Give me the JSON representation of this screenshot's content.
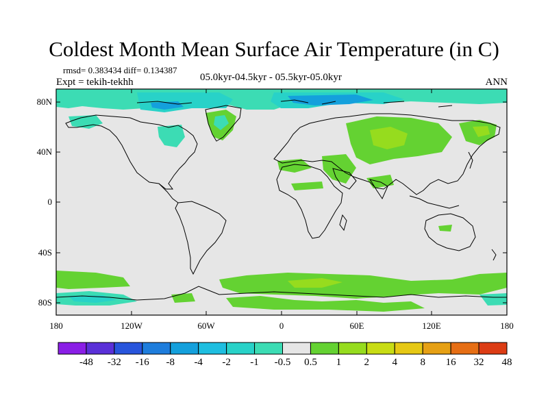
{
  "title": "Coldest Month Mean Surface Air Temperature (in C)",
  "stats": {
    "text": "rmsd= 0.383434  diff= 0.134387"
  },
  "experiment": "Expt = tekih-tekhh",
  "period": "05.0kyr-04.5kyr - 05.5kyr-05.0kyr",
  "season": "ANN",
  "map": {
    "projection": "cylindrical-equidistant",
    "lat_range": [
      -90,
      90
    ],
    "lon_range": [
      -180,
      180
    ],
    "lat_ticks": [
      "80N",
      "40N",
      "0",
      "40S",
      "80S"
    ],
    "lon_ticks": [
      "180",
      "120W",
      "60W",
      "0",
      "60E",
      "120E",
      "180"
    ]
  },
  "colorbar": {
    "labels": [
      "-48",
      "-32",
      "-16",
      "-8",
      "-4",
      "-2",
      "-1",
      "-0.5",
      "0.5",
      "1",
      "2",
      "4",
      "8",
      "16",
      "32",
      "48"
    ],
    "colors": [
      "#8a1ee6",
      "#5a30d8",
      "#2855dc",
      "#1e7ddc",
      "#14a0dc",
      "#1ebee0",
      "#28d2c8",
      "#3cdcb4",
      "#e6e6e6",
      "#64d232",
      "#96dc1e",
      "#c8dc14",
      "#e6c814",
      "#e6a014",
      "#e66e14",
      "#dc3c14"
    ]
  }
}
